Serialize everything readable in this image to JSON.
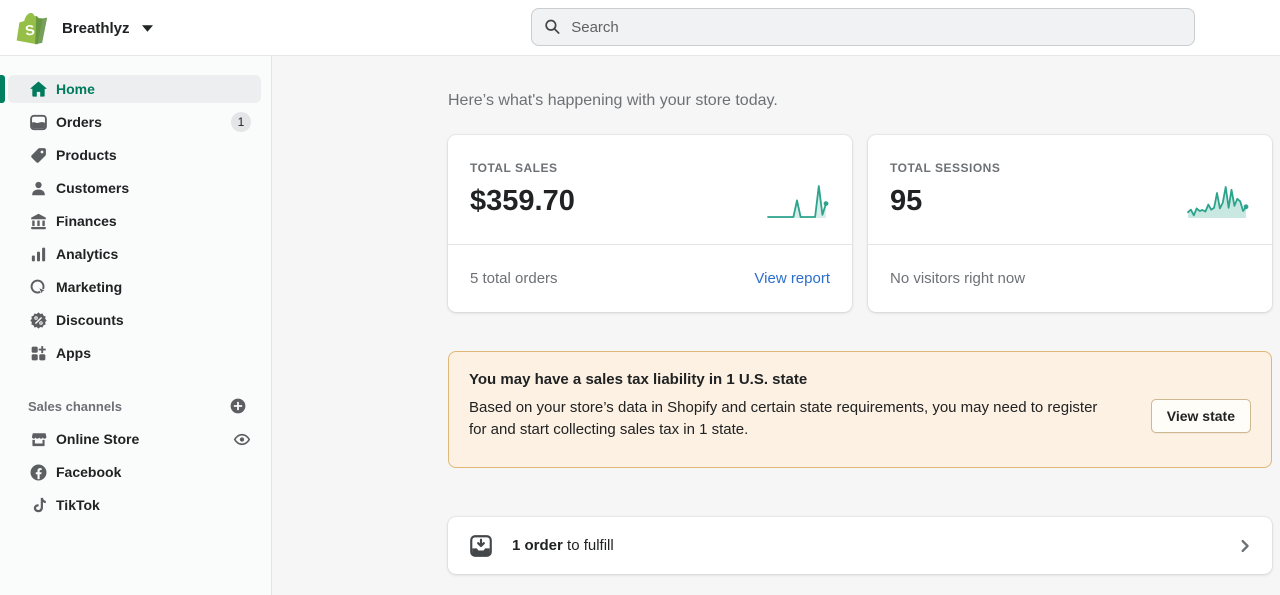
{
  "topbar": {
    "store_name": "Breathlyz",
    "search_placeholder": "Search"
  },
  "sidebar": {
    "items": [
      {
        "label": "Home",
        "icon": "home-icon",
        "active": true
      },
      {
        "label": "Orders",
        "icon": "orders-icon",
        "badge": "1"
      },
      {
        "label": "Products",
        "icon": "products-icon"
      },
      {
        "label": "Customers",
        "icon": "customers-icon"
      },
      {
        "label": "Finances",
        "icon": "finances-icon"
      },
      {
        "label": "Analytics",
        "icon": "analytics-icon"
      },
      {
        "label": "Marketing",
        "icon": "marketing-icon"
      },
      {
        "label": "Discounts",
        "icon": "discounts-icon"
      },
      {
        "label": "Apps",
        "icon": "apps-icon"
      }
    ],
    "sales_channels": {
      "header": "Sales channels",
      "items": [
        {
          "label": "Online Store",
          "icon": "online-store-icon",
          "trailing_icon": "eye-icon"
        },
        {
          "label": "Facebook",
          "icon": "facebook-icon"
        },
        {
          "label": "TikTok",
          "icon": "tiktok-icon"
        }
      ]
    }
  },
  "main": {
    "greeting": "Here’s what's happening with your store today.",
    "metrics": [
      {
        "title": "TOTAL SALES",
        "value": "$359.70",
        "footer_text": "5 total orders",
        "footer_link": "View report",
        "sparkline": {
          "values": [
            3,
            3,
            3,
            3,
            3,
            3,
            3,
            3,
            55,
            3,
            3,
            3,
            3,
            3,
            100,
            10,
            45
          ],
          "color": "#2CA38D",
          "fill": "rgba(44,163,141,0.18)"
        }
      },
      {
        "title": "TOTAL SESSIONS",
        "value": "95",
        "footer_text": "No visitors right now",
        "sparkline": {
          "values": [
            18,
            26,
            8,
            30,
            22,
            25,
            20,
            42,
            26,
            32,
            78,
            30,
            48,
            97,
            32,
            88,
            38,
            60,
            52,
            22,
            35
          ],
          "color": "#2CA38D",
          "fill": "rgba(44,163,141,0.25)"
        }
      }
    ],
    "tax_banner": {
      "title": "You may have a sales tax liability in 1 U.S. state",
      "body": "Based on your store’s data in Shopify and certain state requirements, you may need to register for and start collecting sales tax in 1 state.",
      "button": "View state"
    },
    "fulfill": {
      "bold": "1 order",
      "rest": " to fulfill"
    }
  },
  "colors": {
    "accent_green": "#008060",
    "sparkline": "#2CA38D",
    "link_blue": "#2C6ECB",
    "banner_bg": "#FCF1E3",
    "banner_border": "#E1B878"
  }
}
